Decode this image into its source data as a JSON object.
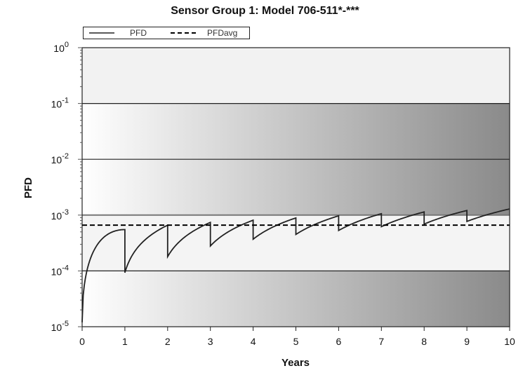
{
  "chart_data": {
    "type": "line",
    "title": "Sensor Group 1: Model 706-511*-***",
    "xlabel": "Years",
    "ylabel": "PFD",
    "xlim": [
      0,
      10
    ],
    "ylim": [
      1e-05,
      1
    ],
    "y_scale": "log",
    "x_ticks": [
      "0",
      "1",
      "2",
      "3",
      "4",
      "5",
      "6",
      "7",
      "8",
      "9",
      "10"
    ],
    "y_ticks": [
      {
        "base": "10",
        "exp": "0",
        "value": 1
      },
      {
        "base": "10",
        "exp": "-1",
        "value": 0.1
      },
      {
        "base": "10",
        "exp": "-2",
        "value": 0.01
      },
      {
        "base": "10",
        "exp": "-3",
        "value": 0.001
      },
      {
        "base": "10",
        "exp": "-4",
        "value": 0.0001
      },
      {
        "base": "10",
        "exp": "-5",
        "value": 1e-05
      }
    ],
    "legend": {
      "position": "top-left",
      "entries": [
        {
          "label": "PFD",
          "style": "solid"
        },
        {
          "label": "PFDavg",
          "style": "dashed"
        }
      ]
    },
    "series": [
      {
        "name": "PFD",
        "style": "solid",
        "color": "#222222",
        "proof_test_years": [
          1,
          2,
          3,
          4,
          5,
          6,
          7,
          8,
          9
        ],
        "peak_before_test": [
          0.00055,
          0.00066,
          0.00074,
          0.00081,
          0.00089,
          0.00097,
          0.00106,
          0.00114,
          0.00121
        ],
        "value_after_test": [
          9.3e-05,
          0.00018,
          0.00028,
          0.00037,
          0.00045,
          0.00053,
          0.00062,
          0.00069,
          0.00077
        ],
        "start": {
          "x": 0,
          "y": 1.2e-05
        },
        "end": {
          "x": 10,
          "y": 0.00129
        }
      },
      {
        "name": "PFDavg",
        "style": "dashed",
        "color": "#000000",
        "value": 0.00066
      }
    ],
    "sil_band_boundaries": [
      0.1,
      0.01,
      0.001,
      0.0001
    ],
    "grid": false
  }
}
